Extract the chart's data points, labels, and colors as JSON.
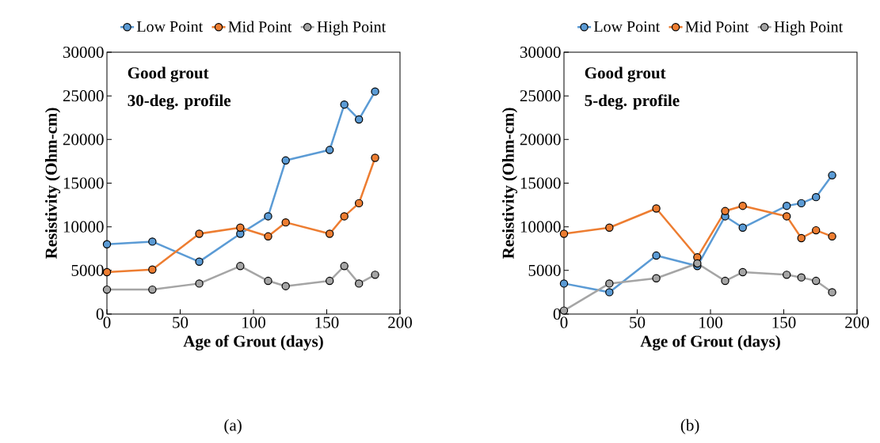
{
  "chart_data": [
    {
      "type": "line",
      "xlabel": "Age of Grout (days)",
      "ylabel": "Resistivity (Ohm-cm)",
      "annotations": [
        "Good grout",
        "30-deg. profile",
        "(a)"
      ],
      "x": [
        0,
        31,
        63,
        91,
        110,
        122,
        152,
        162,
        172,
        183
      ],
      "series": [
        {
          "name": "Low Point",
          "color": "#5b9bd5",
          "values": [
            8000,
            8300,
            6000,
            9200,
            11200,
            17600,
            18800,
            24000,
            22300,
            25500
          ]
        },
        {
          "name": "Mid Point",
          "color": "#ed7d31",
          "values": [
            4800,
            5100,
            9200,
            9900,
            8900,
            10500,
            9200,
            11200,
            12700,
            17900
          ]
        },
        {
          "name": "High Point",
          "color": "#a5a5a5",
          "values": [
            2800,
            2800,
            3500,
            5500,
            3800,
            3200,
            3800,
            5500,
            3500,
            4500
          ]
        }
      ],
      "xlim": [
        0,
        200
      ],
      "xticks": [
        0,
        50,
        100,
        150,
        200
      ],
      "ylim": [
        0,
        30000
      ],
      "yticks": [
        0,
        5000,
        10000,
        15000,
        20000,
        25000,
        30000
      ],
      "grid": false,
      "legend": "top",
      "marker": "circle",
      "line_style": "solid"
    },
    {
      "type": "line",
      "xlabel": "Age of Grout (days)",
      "ylabel": "Resistivity (Ohm-cm)",
      "annotations": [
        "Good grout",
        "5-deg. profile",
        "(b)"
      ],
      "x": [
        0,
        31,
        63,
        91,
        110,
        122,
        152,
        162,
        172,
        183
      ],
      "series": [
        {
          "name": "Low Point",
          "color": "#5b9bd5",
          "values": [
            3500,
            2500,
            6700,
            5500,
            11200,
            9900,
            12400,
            12700,
            13400,
            15900
          ]
        },
        {
          "name": "Mid Point",
          "color": "#ed7d31",
          "values": [
            9200,
            9900,
            12100,
            6500,
            11800,
            12400,
            11200,
            8700,
            9600,
            8900
          ]
        },
        {
          "name": "High Point",
          "color": "#a5a5a5",
          "values": [
            400,
            3500,
            4100,
            5800,
            3800,
            4800,
            4500,
            4200,
            3800,
            2500
          ]
        }
      ],
      "xlim": [
        0,
        200
      ],
      "xticks": [
        0,
        50,
        100,
        150,
        200
      ],
      "ylim": [
        0,
        30000
      ],
      "yticks": [
        0,
        5000,
        10000,
        15000,
        20000,
        25000,
        30000
      ],
      "grid": false,
      "legend": "top",
      "marker": "circle",
      "line_style": "solid"
    }
  ]
}
